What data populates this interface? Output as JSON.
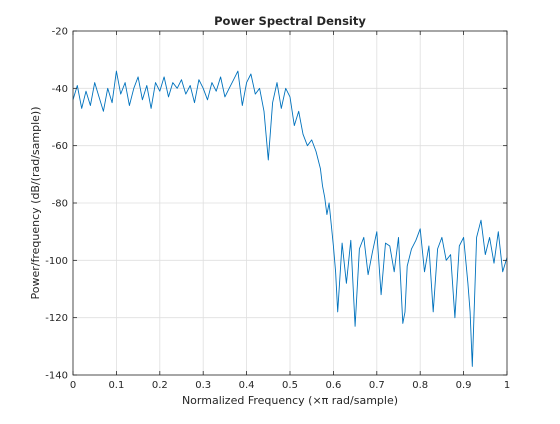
{
  "chart_data": {
    "type": "line",
    "title": "Power Spectral Density",
    "xlabel": "Normalized Frequency  (×π rad/sample)",
    "ylabel": "Power/frequency (dB/(rad/sample))",
    "xlim": [
      0,
      1
    ],
    "ylim": [
      -140,
      -20
    ],
    "xticks": [
      "0",
      "0.1",
      "0.2",
      "0.3",
      "0.4",
      "0.5",
      "0.6",
      "0.7",
      "0.8",
      "0.9",
      "1"
    ],
    "yticks": [
      "-20",
      "-40",
      "-60",
      "-80",
      "-100",
      "-120",
      "-140"
    ],
    "grid": true,
    "legend": "none",
    "line_color": "#0072bd",
    "series": [
      {
        "x": [
          0,
          0.01,
          0.02,
          0.03,
          0.04,
          0.05,
          0.06,
          0.07,
          0.08,
          0.09,
          0.1,
          0.11,
          0.12,
          0.13,
          0.14,
          0.15,
          0.16,
          0.17,
          0.18,
          0.19,
          0.2,
          0.21,
          0.22,
          0.23,
          0.24,
          0.25,
          0.26,
          0.27,
          0.28,
          0.29,
          0.3,
          0.31,
          0.32,
          0.33,
          0.34,
          0.35,
          0.36,
          0.37,
          0.38,
          0.39,
          0.4,
          0.41,
          0.42,
          0.43,
          0.44,
          0.45,
          0.46,
          0.47,
          0.48,
          0.49,
          0.5,
          0.51,
          0.52,
          0.53,
          0.54,
          0.55,
          0.56,
          0.57,
          0.575,
          0.58,
          0.585,
          0.59,
          0.6,
          0.605,
          0.61,
          0.62,
          0.63,
          0.64,
          0.65,
          0.66,
          0.67,
          0.68,
          0.69,
          0.7,
          0.71,
          0.72,
          0.73,
          0.74,
          0.75,
          0.76,
          0.765,
          0.77,
          0.78,
          0.79,
          0.8,
          0.81,
          0.82,
          0.83,
          0.84,
          0.85,
          0.86,
          0.87,
          0.88,
          0.89,
          0.9,
          0.91,
          0.915,
          0.92,
          0.93,
          0.94,
          0.95,
          0.96,
          0.97,
          0.98,
          0.99,
          1
        ],
        "y": [
          -44,
          -39,
          -47,
          -41,
          -46,
          -38,
          -43,
          -48,
          -40,
          -45,
          -34,
          -42,
          -38,
          -46,
          -40,
          -36,
          -44,
          -39,
          -47,
          -38,
          -41,
          -36,
          -43,
          -38,
          -40,
          -37,
          -42,
          -39,
          -45,
          -37,
          -40,
          -44,
          -38,
          -41,
          -36,
          -43,
          -40,
          -37,
          -34,
          -46,
          -38,
          -35,
          -42,
          -40,
          -48,
          -65,
          -45,
          -38,
          -47,
          -40,
          -43,
          -53,
          -48,
          -56,
          -60,
          -58,
          -62,
          -68,
          -74,
          -78,
          -84,
          -80,
          -95,
          -104,
          -118,
          -94,
          -108,
          -93,
          -123,
          -96,
          -92,
          -105,
          -97,
          -90,
          -112,
          -94,
          -95,
          -104,
          -92,
          -122,
          -118,
          -102,
          -96,
          -93,
          -89,
          -104,
          -95,
          -118,
          -96,
          -92,
          -100,
          -98,
          -120,
          -95,
          -92,
          -108,
          -118,
          -137,
          -92,
          -86,
          -98,
          -92,
          -101,
          -90,
          -104,
          -99
        ]
      }
    ]
  }
}
